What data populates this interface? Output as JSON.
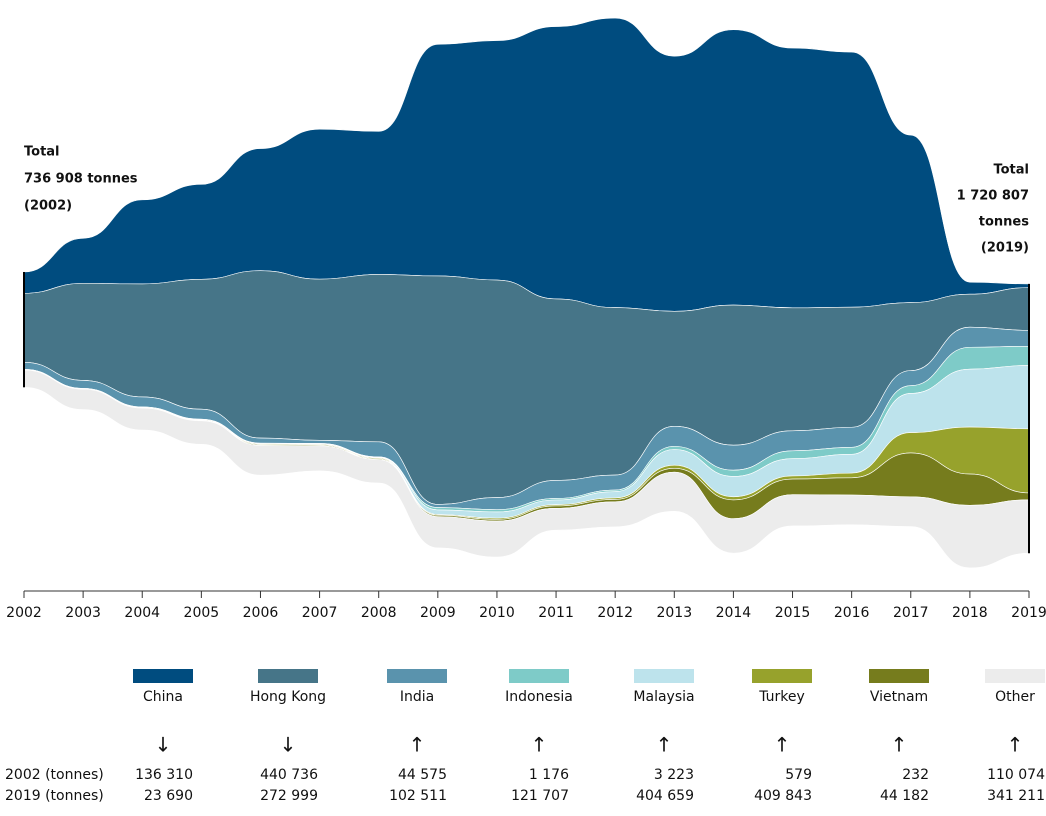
{
  "chart_data": {
    "type": "streamgraph",
    "x": [
      2002,
      2003,
      2004,
      2005,
      2006,
      2007,
      2008,
      2009,
      2010,
      2011,
      2012,
      2013,
      2014,
      2015,
      2016,
      2017,
      2018,
      2019
    ],
    "xlim": [
      2002,
      2019
    ],
    "xticks": [
      2002,
      2003,
      2004,
      2005,
      2006,
      2007,
      2008,
      2009,
      2010,
      2011,
      2012,
      2013,
      2014,
      2015,
      2016,
      2017,
      2018,
      2019
    ],
    "series": [
      {
        "name": "China",
        "color": "#004c7f",
        "values": [
          136310,
          288000,
          537000,
          607000,
          780000,
          958000,
          914000,
          1480000,
          1530000,
          1740000,
          1850000,
          1630000,
          1760000,
          1660000,
          1630000,
          1070000,
          77000,
          23690
        ]
      },
      {
        "name": "Hong Kong",
        "color": "#467588",
        "values": [
          440736,
          620000,
          722000,
          830000,
          1070000,
          1030000,
          1070000,
          1460000,
          1390000,
          1160000,
          1070000,
          735000,
          895000,
          786000,
          767000,
          435000,
          211000,
          272999
        ]
      },
      {
        "name": "India",
        "color": "#5a93ad",
        "values": [
          44575,
          51000,
          64000,
          64000,
          32000,
          20000,
          96000,
          20000,
          77000,
          115000,
          96000,
          128000,
          160000,
          128000,
          128000,
          96000,
          128000,
          102511
        ]
      },
      {
        "name": "Indonesia",
        "color": "#7ecbc8",
        "values": [
          1176,
          1000,
          1500,
          2000,
          2000,
          2000,
          3000,
          15000,
          15000,
          10000,
          10000,
          20000,
          40000,
          50000,
          45000,
          50000,
          140000,
          121707
        ]
      },
      {
        "name": "Malaysia",
        "color": "#bde3ec",
        "values": [
          3223,
          3000,
          3000,
          3000,
          3000,
          3500,
          4000,
          30000,
          40000,
          30000,
          40000,
          100000,
          130000,
          110000,
          120000,
          250000,
          370000,
          404659
        ]
      },
      {
        "name": "Turkey",
        "color": "#97a22c",
        "values": [
          579,
          1000,
          2000,
          3000,
          5000,
          5000,
          5000,
          5000,
          8000,
          8000,
          10000,
          20000,
          20000,
          20000,
          30000,
          130000,
          300000,
          409843
        ]
      },
      {
        "name": "Vietnam",
        "color": "#767c1d",
        "values": [
          232,
          500,
          1000,
          2000,
          5000,
          5000,
          5000,
          8000,
          10000,
          15000,
          15000,
          25000,
          120000,
          100000,
          110000,
          280000,
          200000,
          44182
        ]
      },
      {
        "name": "Other",
        "color": "#ececec",
        "values": [
          110074,
          130000,
          140000,
          150000,
          190000,
          160000,
          150000,
          200000,
          230000,
          140000,
          160000,
          250000,
          220000,
          200000,
          190000,
          190000,
          400000,
          341211
        ]
      }
    ],
    "annotations": {
      "left": [
        "Total",
        "736 908 tonnes",
        "(2002)"
      ],
      "right": [
        "Total",
        "1 720 807",
        "tonnes",
        "(2019)"
      ]
    },
    "table": {
      "trend": [
        "↓",
        "↓",
        "↑",
        "↑",
        "↑",
        "↑",
        "↑",
        "↑"
      ],
      "rows": [
        {
          "label": "2002 (tonnes)",
          "cells": [
            "136 310",
            "440 736",
            "44 575",
            "1 176",
            "3 223",
            "579",
            "232",
            "110 074"
          ]
        },
        {
          "label": "2019 (tonnes)",
          "cells": [
            "23 690",
            "272 999",
            "102 511",
            "121 707",
            "404 659",
            "409 843",
            "44 182",
            "341 211"
          ]
        }
      ]
    }
  }
}
